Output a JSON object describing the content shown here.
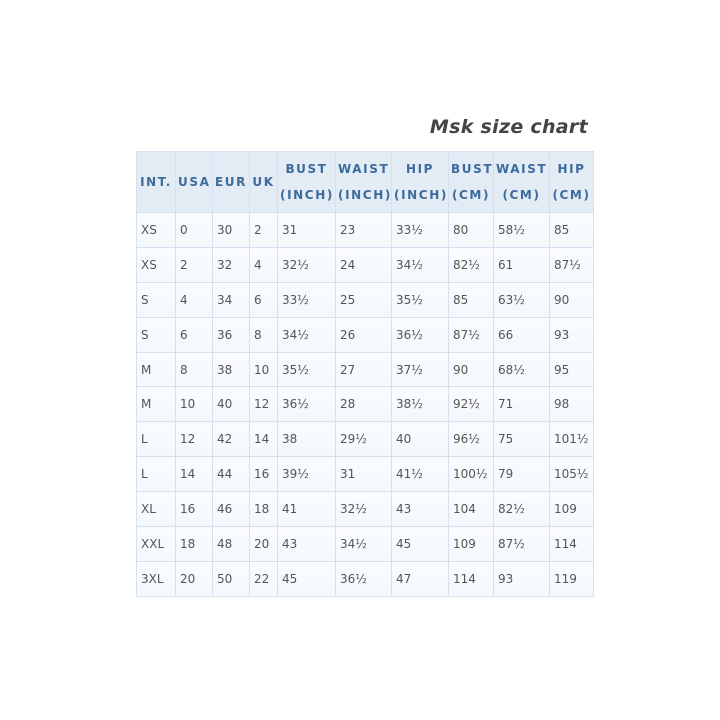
{
  "title": "Msk size chart",
  "colors": {
    "header_text": "#3d6b9c",
    "header_bg": "#e3ebf5",
    "border": "#d6e1ef"
  },
  "headers": [
    "INT.",
    "USA",
    "EUR",
    "UK",
    "BUST (INCH)",
    "WAIST (INCH)",
    "HIP (INCH)",
    "BUST (CM)",
    "WAIST (CM)",
    "HIP (CM)"
  ],
  "rows": [
    [
      "XS",
      "0",
      "30",
      "2",
      "31",
      "23",
      "33½",
      "80",
      "58½",
      "85"
    ],
    [
      "XS",
      "2",
      "32",
      "4",
      "32½",
      "24",
      "34½",
      "82½",
      "61",
      "87½"
    ],
    [
      "S",
      "4",
      "34",
      "6",
      "33½",
      "25",
      "35½",
      "85",
      "63½",
      "90"
    ],
    [
      "S",
      "6",
      "36",
      "8",
      "34½",
      "26",
      "36½",
      "87½",
      "66",
      "93"
    ],
    [
      "M",
      "8",
      "38",
      "10",
      "35½",
      "27",
      "37½",
      "90",
      "68½",
      "95"
    ],
    [
      "M",
      "10",
      "40",
      "12",
      "36½",
      "28",
      "38½",
      "92½",
      "71",
      "98"
    ],
    [
      "L",
      "12",
      "42",
      "14",
      "38",
      "29½",
      "40",
      "96½",
      "75",
      "101½"
    ],
    [
      "L",
      "14",
      "44",
      "16",
      "39½",
      "31",
      "41½",
      "100½",
      "79",
      "105½"
    ],
    [
      "XL",
      "16",
      "46",
      "18",
      "41",
      "32½",
      "43",
      "104",
      "82½",
      "109"
    ],
    [
      "XXL",
      "18",
      "48",
      "20",
      "43",
      "34½",
      "45",
      "109",
      "87½",
      "114"
    ],
    [
      "3XL",
      "20",
      "50",
      "22",
      "45",
      "36½",
      "47",
      "114",
      "93",
      "119"
    ]
  ]
}
